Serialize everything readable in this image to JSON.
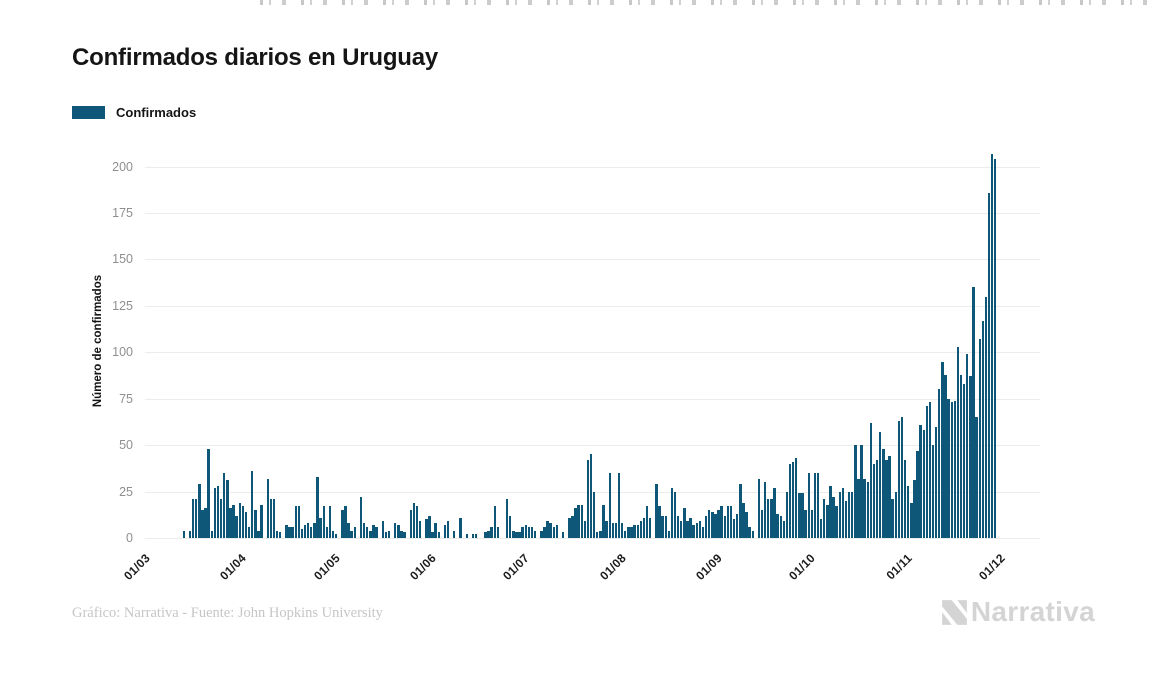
{
  "page": {
    "background": "#ffffff"
  },
  "colors": {
    "bar": "#0e5778",
    "grid": "#ececec",
    "y_tick": "#8f8f8f",
    "x_tick": "#1d1d1d",
    "title": "#151515",
    "credit": "#c6c6c6",
    "brand": "#d4d4d4"
  },
  "footer": {
    "credit": "Gráfico: Narrativa - Fuente: John Hopkins University",
    "brand": "Narrativa"
  },
  "chart_data": {
    "type": "bar",
    "title": "Confirmados diarios en Uruguay",
    "legend_label": "Confirmados",
    "ylabel": "Número de confirmados",
    "xlabel": "",
    "grid": true,
    "legend_position": "top-left",
    "bar_color": "#0e5778",
    "ylim": [
      0,
      212
    ],
    "yticks": [
      0,
      25,
      50,
      75,
      100,
      125,
      150,
      175,
      200
    ],
    "x_tick_labels": [
      "01/03",
      "01/04",
      "01/05",
      "01/06",
      "01/07",
      "01/08",
      "01/09",
      "01/10",
      "01/11",
      "01/12"
    ],
    "x_tick_days": [
      0,
      31,
      61,
      92,
      122,
      153,
      184,
      214,
      245,
      275
    ],
    "x_domain_days": 288,
    "series_start_label": "01/03",
    "values": [
      0,
      0,
      0,
      0,
      0,
      0,
      0,
      0,
      0,
      0,
      0,
      0,
      4,
      0,
      4,
      21,
      21,
      29,
      15,
      16,
      48,
      4,
      27,
      28,
      21,
      35,
      31,
      16,
      18,
      12,
      19,
      17,
      14,
      6,
      36,
      15,
      4,
      18,
      0,
      32,
      21,
      21,
      4,
      3,
      0,
      7,
      6,
      6,
      17,
      17,
      5,
      7,
      8,
      6,
      8,
      33,
      11,
      17,
      6,
      17,
      4,
      2,
      0,
      15,
      17,
      8,
      4,
      6,
      0,
      22,
      8,
      6,
      4,
      7,
      6,
      0,
      9,
      3,
      4,
      0,
      8,
      7,
      4,
      3,
      0,
      15,
      19,
      17,
      9,
      0,
      10,
      12,
      3,
      8,
      3,
      0,
      7,
      9,
      0,
      4,
      0,
      11,
      0,
      2,
      0,
      2,
      2,
      0,
      0,
      3,
      4,
      6,
      17,
      6,
      0,
      0,
      21,
      12,
      4,
      3,
      3,
      6,
      7,
      6,
      6,
      4,
      0,
      4,
      6,
      9,
      8,
      6,
      7,
      0,
      3,
      0,
      11,
      12,
      16,
      18,
      18,
      9,
      42,
      45,
      25,
      3,
      4,
      18,
      9,
      35,
      8,
      8,
      35,
      8,
      4,
      6,
      6,
      7,
      7,
      9,
      11,
      17,
      11,
      0,
      29,
      17,
      12,
      12,
      4,
      27,
      25,
      12,
      9,
      16,
      9,
      11,
      7,
      8,
      9,
      6,
      12,
      15,
      14,
      13,
      15,
      17,
      12,
      17,
      17,
      10,
      13,
      29,
      19,
      14,
      6,
      4,
      0,
      32,
      15,
      30,
      21,
      21,
      27,
      13,
      12,
      9,
      25,
      40,
      41,
      43,
      24,
      24,
      15,
      35,
      15,
      35,
      35,
      10,
      21,
      18,
      28,
      22,
      17,
      25,
      27,
      20,
      25,
      25,
      50,
      32,
      50,
      32,
      30,
      62,
      40,
      42,
      57,
      48,
      42,
      44,
      21,
      25,
      63,
      65,
      42,
      28,
      19,
      31,
      47,
      61,
      58,
      71,
      73,
      50,
      60,
      80,
      95,
      88,
      75,
      73,
      74,
      103,
      88,
      83,
      99,
      87,
      135,
      65,
      107,
      117,
      130,
      186,
      207,
      204
    ]
  }
}
